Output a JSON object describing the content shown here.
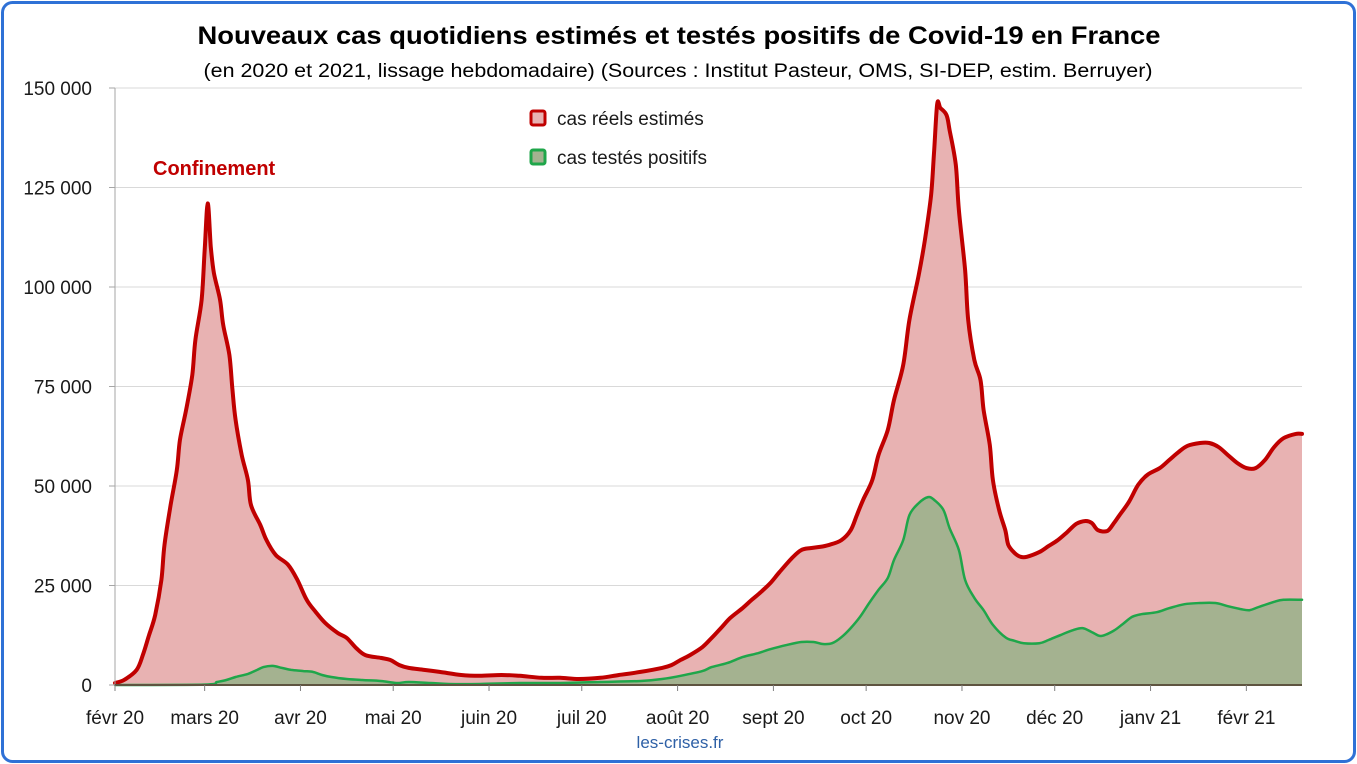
{
  "chart_data": {
    "type": "area",
    "title": "Nouveaux cas quotidiens estimés et testés positifs de Covid-19 en France",
    "subtitle": "(en 2020 et 2021, lissage hebdomadaire) (Sources : Institut Pasteur, OMS, SI-DEP, estim. Berruyer)",
    "x_scale": "date",
    "xlim": [
      "2020-02-01",
      "2021-02-19"
    ],
    "ylim": [
      0,
      150000
    ],
    "y_ticks": [
      0,
      25000,
      50000,
      75000,
      100000,
      125000,
      150000
    ],
    "y_tick_labels": [
      "0",
      "25 000",
      "50 000",
      "75 000",
      "100 000",
      "125 000",
      "150 000"
    ],
    "x_ticks": [
      "2020-02-01",
      "2020-03-01",
      "2020-04-01",
      "2020-05-01",
      "2020-06-01",
      "2020-07-01",
      "2020-08-01",
      "2020-09-01",
      "2020-10-01",
      "2020-11-01",
      "2020-12-01",
      "2021-01-01",
      "2021-02-01"
    ],
    "x_tick_labels": [
      "févr 20",
      "mars 20",
      "avr 20",
      "mai 20",
      "juin 20",
      "juil 20",
      "août 20",
      "sept 20",
      "oct 20",
      "nov 20",
      "déc 20",
      "janv 21",
      "févr 21"
    ],
    "grid": "y",
    "legend": "top-center",
    "annotations": [
      "Confinement"
    ],
    "footer": "les-crises.fr",
    "series": [
      {
        "name": "cas réels estimés",
        "color": "#c00000",
        "fill": "#e8b2b2",
        "points": [
          [
            "2020-02-01",
            500
          ],
          [
            "2020-02-04",
            1300
          ],
          [
            "2020-02-08",
            3800
          ],
          [
            "2020-02-10",
            7500
          ],
          [
            "2020-02-12",
            12500
          ],
          [
            "2020-02-14",
            17600
          ],
          [
            "2020-02-16",
            26400
          ],
          [
            "2020-02-17",
            35200
          ],
          [
            "2020-02-19",
            45200
          ],
          [
            "2020-02-21",
            54000
          ],
          [
            "2020-02-22",
            61500
          ],
          [
            "2020-02-24",
            69100
          ],
          [
            "2020-02-26",
            77900
          ],
          [
            "2020-02-27",
            86700
          ],
          [
            "2020-02-29",
            96700
          ],
          [
            "2020-03-01",
            109000
          ],
          [
            "2020-03-02",
            121000
          ],
          [
            "2020-03-03",
            110000
          ],
          [
            "2020-03-04",
            103500
          ],
          [
            "2020-03-06",
            96700
          ],
          [
            "2020-03-07",
            90500
          ],
          [
            "2020-03-09",
            82900
          ],
          [
            "2020-03-10",
            74100
          ],
          [
            "2020-03-11",
            66600
          ],
          [
            "2020-03-13",
            57800
          ],
          [
            "2020-03-15",
            51500
          ],
          [
            "2020-03-16",
            45200
          ],
          [
            "2020-03-19",
            40200
          ],
          [
            "2020-03-21",
            36400
          ],
          [
            "2020-03-24",
            32700
          ],
          [
            "2020-03-28",
            30200
          ],
          [
            "2020-03-31",
            26400
          ],
          [
            "2020-04-03",
            21400
          ],
          [
            "2020-04-06",
            18300
          ],
          [
            "2020-04-09",
            15600
          ],
          [
            "2020-04-13",
            13100
          ],
          [
            "2020-04-16",
            11800
          ],
          [
            "2020-04-19",
            9300
          ],
          [
            "2020-04-22",
            7500
          ],
          [
            "2020-04-27",
            6800
          ],
          [
            "2020-04-30",
            6300
          ],
          [
            "2020-05-03",
            5000
          ],
          [
            "2020-05-06",
            4300
          ],
          [
            "2020-05-11",
            3800
          ],
          [
            "2020-05-16",
            3300
          ],
          [
            "2020-05-23",
            2500
          ],
          [
            "2020-05-29",
            2300
          ],
          [
            "2020-06-05",
            2500
          ],
          [
            "2020-06-11",
            2300
          ],
          [
            "2020-06-18",
            1800
          ],
          [
            "2020-06-24",
            1800
          ],
          [
            "2020-06-30",
            1500
          ],
          [
            "2020-07-07",
            1800
          ],
          [
            "2020-07-13",
            2500
          ],
          [
            "2020-07-20",
            3300
          ],
          [
            "2020-07-27",
            4300
          ],
          [
            "2020-07-30",
            5000
          ],
          [
            "2020-08-02",
            6300
          ],
          [
            "2020-08-05",
            7500
          ],
          [
            "2020-08-09",
            9500
          ],
          [
            "2020-08-12",
            11800
          ],
          [
            "2020-08-15",
            14300
          ],
          [
            "2020-08-18",
            16800
          ],
          [
            "2020-08-22",
            19300
          ],
          [
            "2020-08-25",
            21400
          ],
          [
            "2020-08-28",
            23400
          ],
          [
            "2020-08-31",
            25600
          ],
          [
            "2020-09-03",
            28400
          ],
          [
            "2020-09-07",
            31900
          ],
          [
            "2020-09-10",
            33900
          ],
          [
            "2020-09-13",
            34400
          ],
          [
            "2020-09-16",
            34700
          ],
          [
            "2020-09-19",
            35200
          ],
          [
            "2020-09-23",
            36400
          ],
          [
            "2020-09-26",
            38900
          ],
          [
            "2020-09-28",
            42700
          ],
          [
            "2020-09-30",
            46500
          ],
          [
            "2020-10-03",
            51500
          ],
          [
            "2020-10-05",
            57800
          ],
          [
            "2020-10-08",
            64100
          ],
          [
            "2020-10-10",
            71600
          ],
          [
            "2020-10-13",
            80400
          ],
          [
            "2020-10-15",
            91700
          ],
          [
            "2020-10-18",
            103000
          ],
          [
            "2020-10-20",
            111800
          ],
          [
            "2020-10-22",
            123100
          ],
          [
            "2020-10-23",
            134400
          ],
          [
            "2020-10-24",
            146000
          ],
          [
            "2020-10-25",
            145000
          ],
          [
            "2020-10-27",
            143200
          ],
          [
            "2020-10-28",
            139400
          ],
          [
            "2020-10-30",
            130700
          ],
          [
            "2020-10-31",
            119300
          ],
          [
            "2020-11-02",
            104300
          ],
          [
            "2020-11-03",
            91700
          ],
          [
            "2020-11-05",
            81700
          ],
          [
            "2020-11-07",
            76600
          ],
          [
            "2020-11-08",
            69100
          ],
          [
            "2020-11-10",
            60300
          ],
          [
            "2020-11-11",
            51500
          ],
          [
            "2020-11-13",
            44000
          ],
          [
            "2020-11-15",
            38900
          ],
          [
            "2020-11-16",
            35200
          ],
          [
            "2020-11-18",
            33200
          ],
          [
            "2020-11-20",
            32200
          ],
          [
            "2020-11-22",
            32200
          ],
          [
            "2020-11-26",
            33400
          ],
          [
            "2020-11-29",
            34900
          ],
          [
            "2020-12-02",
            36400
          ],
          [
            "2020-12-05",
            38400
          ],
          [
            "2020-12-08",
            40500
          ],
          [
            "2020-12-11",
            41200
          ],
          [
            "2020-12-13",
            40700
          ],
          [
            "2020-12-15",
            38900
          ],
          [
            "2020-12-18",
            38700
          ],
          [
            "2020-12-20",
            40500
          ],
          [
            "2020-12-22",
            42700
          ],
          [
            "2020-12-25",
            46000
          ],
          [
            "2020-12-28",
            50300
          ],
          [
            "2020-12-31",
            52800
          ],
          [
            "2021-01-04",
            54500
          ],
          [
            "2021-01-07",
            56500
          ],
          [
            "2021-01-10",
            58500
          ],
          [
            "2021-01-13",
            60100
          ],
          [
            "2021-01-17",
            60800
          ],
          [
            "2021-01-20",
            60800
          ],
          [
            "2021-01-23",
            59800
          ],
          [
            "2021-01-26",
            57800
          ],
          [
            "2021-01-29",
            55800
          ],
          [
            "2021-02-01",
            54500
          ],
          [
            "2021-02-04",
            54500
          ],
          [
            "2021-02-07",
            56500
          ],
          [
            "2021-02-10",
            59800
          ],
          [
            "2021-02-13",
            62000
          ],
          [
            "2021-02-17",
            63100
          ],
          [
            "2021-02-19",
            63100
          ]
        ]
      },
      {
        "name": "cas testés positifs",
        "color": "#1fa64a",
        "fill": "#a4b290",
        "points": [
          [
            "2020-02-01",
            0
          ],
          [
            "2020-03-01",
            100
          ],
          [
            "2020-03-05",
            750
          ],
          [
            "2020-03-08",
            1250
          ],
          [
            "2020-03-11",
            2000
          ],
          [
            "2020-03-15",
            2800
          ],
          [
            "2020-03-18",
            3800
          ],
          [
            "2020-03-20",
            4500
          ],
          [
            "2020-03-23",
            4800
          ],
          [
            "2020-03-26",
            4300
          ],
          [
            "2020-03-29",
            3800
          ],
          [
            "2020-04-02",
            3500
          ],
          [
            "2020-04-05",
            3300
          ],
          [
            "2020-04-08",
            2500
          ],
          [
            "2020-04-11",
            2000
          ],
          [
            "2020-04-16",
            1500
          ],
          [
            "2020-04-21",
            1250
          ],
          [
            "2020-04-27",
            1000
          ],
          [
            "2020-05-02",
            500
          ],
          [
            "2020-05-06",
            750
          ],
          [
            "2020-05-13",
            500
          ],
          [
            "2020-05-19",
            250
          ],
          [
            "2020-05-29",
            250
          ],
          [
            "2020-06-11",
            500
          ],
          [
            "2020-06-24",
            500
          ],
          [
            "2020-07-07",
            750
          ],
          [
            "2020-07-20",
            1000
          ],
          [
            "2020-07-27",
            1500
          ],
          [
            "2020-08-02",
            2300
          ],
          [
            "2020-08-09",
            3500
          ],
          [
            "2020-08-12",
            4500
          ],
          [
            "2020-08-17",
            5500
          ],
          [
            "2020-08-22",
            7000
          ],
          [
            "2020-08-27",
            8000
          ],
          [
            "2020-08-31",
            9000
          ],
          [
            "2020-09-05",
            10000
          ],
          [
            "2020-09-10",
            10800
          ],
          [
            "2020-09-14",
            10800
          ],
          [
            "2020-09-17",
            10300
          ],
          [
            "2020-09-20",
            10500
          ],
          [
            "2020-09-23",
            12000
          ],
          [
            "2020-09-26",
            14300
          ],
          [
            "2020-09-29",
            17100
          ],
          [
            "2020-10-02",
            20600
          ],
          [
            "2020-10-05",
            23900
          ],
          [
            "2020-10-08",
            26900
          ],
          [
            "2020-10-10",
            31400
          ],
          [
            "2020-10-13",
            36400
          ],
          [
            "2020-10-15",
            42700
          ],
          [
            "2020-10-18",
            45700
          ],
          [
            "2020-10-21",
            47200
          ],
          [
            "2020-10-23",
            46500
          ],
          [
            "2020-10-26",
            44000
          ],
          [
            "2020-10-28",
            39400
          ],
          [
            "2020-10-31",
            33900
          ],
          [
            "2020-11-02",
            26400
          ],
          [
            "2020-11-05",
            21900
          ],
          [
            "2020-11-08",
            18800
          ],
          [
            "2020-11-11",
            15100
          ],
          [
            "2020-11-15",
            12000
          ],
          [
            "2020-11-18",
            11100
          ],
          [
            "2020-11-21",
            10500
          ],
          [
            "2020-11-26",
            10500
          ],
          [
            "2020-11-29",
            11300
          ],
          [
            "2020-12-03",
            12600
          ],
          [
            "2020-12-07",
            13800
          ],
          [
            "2020-12-10",
            14300
          ],
          [
            "2020-12-13",
            13300
          ],
          [
            "2020-12-16",
            12300
          ],
          [
            "2020-12-20",
            13600
          ],
          [
            "2020-12-23",
            15300
          ],
          [
            "2020-12-26",
            17100
          ],
          [
            "2020-12-29",
            17800
          ],
          [
            "2021-01-03",
            18300
          ],
          [
            "2021-01-07",
            19300
          ],
          [
            "2021-01-12",
            20300
          ],
          [
            "2021-01-17",
            20600
          ],
          [
            "2021-01-22",
            20600
          ],
          [
            "2021-01-26",
            19800
          ],
          [
            "2021-01-30",
            19100
          ],
          [
            "2021-02-02",
            18800
          ],
          [
            "2021-02-05",
            19600
          ],
          [
            "2021-02-10",
            20900
          ],
          [
            "2021-02-13",
            21400
          ],
          [
            "2021-02-19",
            21400
          ]
        ]
      }
    ]
  },
  "colors": {
    "frame_border": "#2f71d6",
    "annotation": "#c00000",
    "gridline": "#d9d9d9",
    "axis": "#5e5440"
  }
}
